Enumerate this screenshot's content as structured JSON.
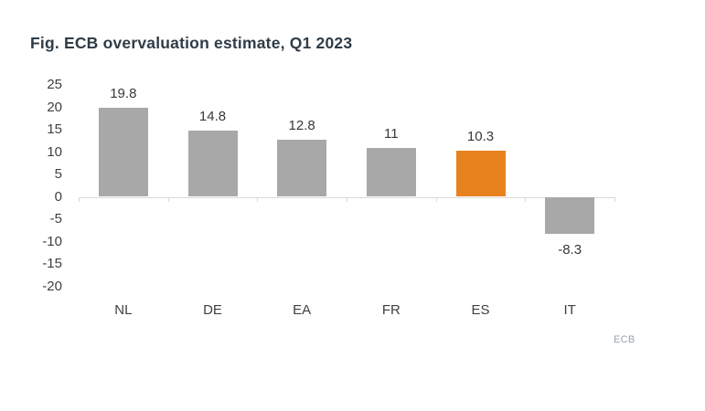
{
  "title": "Fig. ECB overvaluation estimate, Q1 2023",
  "source": "ECB",
  "chart_data": {
    "type": "bar",
    "title": "Fig. ECB overvaluation estimate, Q1 2023",
    "categories": [
      "NL",
      "DE",
      "EA",
      "FR",
      "ES",
      "IT"
    ],
    "values": [
      19.8,
      14.8,
      12.8,
      11,
      10.3,
      -8.3
    ],
    "data_labels": [
      "19.8",
      "14.8",
      "12.8",
      "11",
      "10.3",
      "-8.3"
    ],
    "bar_colors": [
      "#a8a8a8",
      "#a8a8a8",
      "#a8a8a8",
      "#a8a8a8",
      "#e8821e",
      "#a8a8a8"
    ],
    "xlabel": "",
    "ylabel": "",
    "ylim": [
      -20,
      25
    ],
    "yticks": [
      25,
      20,
      15,
      10,
      5,
      0,
      -5,
      -10,
      -15,
      -20
    ],
    "grid": false,
    "legend": false,
    "source": "ECB",
    "colors": {
      "bar_default": "#a8a8a8",
      "bar_highlight": "#e8821e",
      "axis_line": "#d9d9d9",
      "tick_text": "#3f3f3f",
      "title_text": "#2f3c47",
      "source_text": "#9aa3ab",
      "background": "#ffffff"
    }
  }
}
